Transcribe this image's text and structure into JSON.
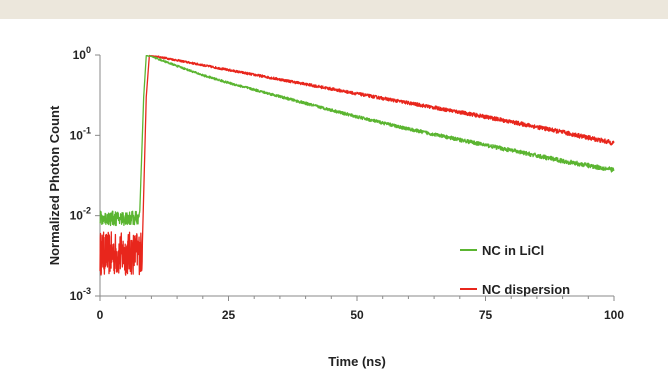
{
  "chart_data": {
    "type": "line",
    "title": "",
    "xlabel": "Time (ns)",
    "ylabel": "Normalized  Photon  Count",
    "xlim": [
      0,
      100
    ],
    "ylim": [
      0.001,
      1
    ],
    "yscale": "log",
    "grid": false,
    "legend_position": "lower-right",
    "x_ticks": [
      0,
      25,
      50,
      75,
      100
    ],
    "x_tick_labels": [
      "0",
      "25",
      "50",
      "75",
      "100"
    ],
    "y_ticks": [
      0.001,
      0.01,
      0.1,
      1
    ],
    "y_tick_labels": [
      {
        "base": "10",
        "exp": "-3"
      },
      {
        "base": "10",
        "exp": "-2"
      },
      {
        "base": "10",
        "exp": "-1"
      },
      {
        "base": "10",
        "exp": "0"
      }
    ],
    "series": [
      {
        "name": "NC in LiCl",
        "color": "#5bb531",
        "points": [
          [
            0,
            0.0093
          ],
          [
            4,
            0.0092
          ],
          [
            7.7,
            0.0094
          ],
          [
            8.5,
            0.3
          ],
          [
            9,
            0.98
          ],
          [
            10,
            0.96
          ],
          [
            15,
            0.73
          ],
          [
            20,
            0.56
          ],
          [
            25,
            0.45
          ],
          [
            30,
            0.37
          ],
          [
            40,
            0.25
          ],
          [
            50,
            0.17
          ],
          [
            60,
            0.12
          ],
          [
            70,
            0.088
          ],
          [
            80,
            0.065
          ],
          [
            90,
            0.048
          ],
          [
            100,
            0.037
          ]
        ]
      },
      {
        "name": "NC dispersion",
        "color": "#e8261c",
        "points": [
          [
            0,
            0.0034
          ],
          [
            4,
            0.0033
          ],
          [
            8.2,
            0.0035
          ],
          [
            9,
            0.3
          ],
          [
            9.6,
            0.98
          ],
          [
            11,
            0.96
          ],
          [
            15,
            0.86
          ],
          [
            25,
            0.65
          ],
          [
            37,
            0.47
          ],
          [
            50,
            0.33
          ],
          [
            62,
            0.24
          ],
          [
            75,
            0.17
          ],
          [
            87,
            0.12
          ],
          [
            100,
            0.08
          ]
        ]
      }
    ]
  }
}
